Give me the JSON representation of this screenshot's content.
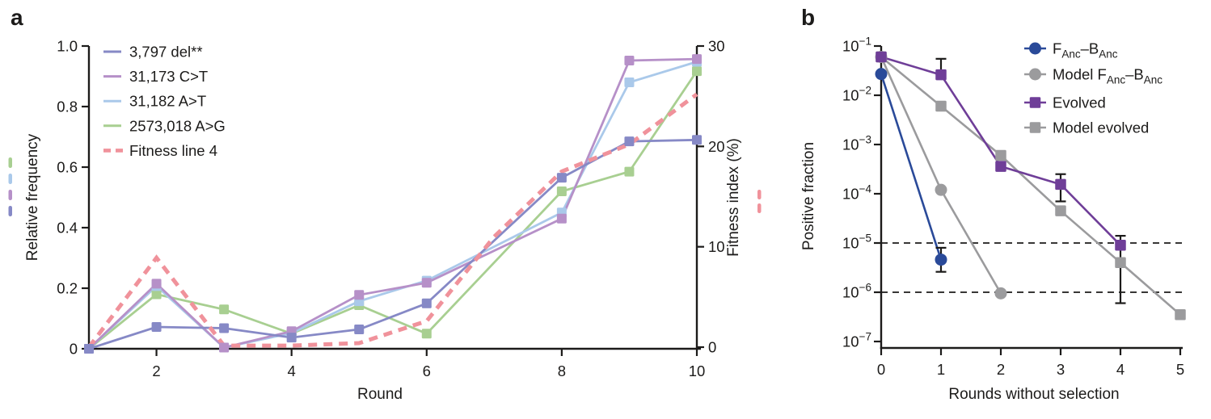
{
  "figure": {
    "background": "#ffffff",
    "text_color": "#1c1b1a",
    "panels": [
      {
        "label": "a"
      },
      {
        "label": "b"
      }
    ]
  },
  "chart_data": [
    {
      "panel": "a",
      "type": "line",
      "title": "",
      "xlabel": "Round",
      "ylabel_left": "Relative frequency",
      "ylabel_right": "Fitness index (%)",
      "x": [
        1,
        2,
        3,
        4,
        5,
        6,
        7,
        8,
        9,
        10
      ],
      "xlim": [
        1,
        10
      ],
      "x_ticks": [
        {
          "v": 2,
          "label": "2"
        },
        {
          "v": 4,
          "label": "4"
        },
        {
          "v": 6,
          "label": "6"
        },
        {
          "v": 8,
          "label": "8"
        },
        {
          "v": 10,
          "label": "10"
        }
      ],
      "ylim_left": [
        0,
        1.0
      ],
      "y_ticks_left": [
        {
          "v": 0,
          "label": "0"
        },
        {
          "v": 0.2,
          "label": "0.2"
        },
        {
          "v": 0.4,
          "label": "0.4"
        },
        {
          "v": 0.6,
          "label": "0.6"
        },
        {
          "v": 0.8,
          "label": "0.8"
        },
        {
          "v": 1.0,
          "label": "1.0"
        }
      ],
      "ylim_right": [
        0,
        30
      ],
      "y_ticks_right": [
        {
          "v": 0,
          "label": "0"
        },
        {
          "v": 10,
          "label": "10"
        },
        {
          "v": 20,
          "label": "20"
        },
        {
          "v": 30,
          "label": "30"
        }
      ],
      "grid": false,
      "legend_position": "top-left-inside",
      "series": [
        {
          "name": "3,797 del**",
          "slug": "3797-del",
          "color": "#8689c6",
          "axis": "left",
          "marker": "square",
          "dashed": false,
          "values": [
            0,
            0.072,
            0.068,
            0.037,
            0.064,
            0.15,
            null,
            0.565,
            0.685,
            0.69
          ]
        },
        {
          "name": "31,173 C>T",
          "slug": "31173-c-t",
          "color": "#b690c8",
          "axis": "left",
          "marker": "square",
          "dashed": false,
          "values": [
            0,
            0.215,
            0.004,
            0.058,
            0.178,
            0.218,
            null,
            0.43,
            0.952,
            0.957
          ]
        },
        {
          "name": "31,182 A>T",
          "slug": "31182-a-t",
          "color": "#aac9ea",
          "axis": "left",
          "marker": "square",
          "dashed": false,
          "values": [
            0,
            0.207,
            0.004,
            0.052,
            0.157,
            0.225,
            null,
            0.45,
            0.88,
            0.948
          ]
        },
        {
          "name": "2573,018 A>G",
          "slug": "2573018-a-g",
          "color": "#a8cf91",
          "axis": "left",
          "marker": "square",
          "dashed": false,
          "values": [
            0,
            0.18,
            0.13,
            0.05,
            0.144,
            0.05,
            null,
            0.52,
            0.585,
            0.917
          ]
        },
        {
          "name": "Fitness line 4",
          "slug": "fitness-line-4",
          "color": "#f0929b",
          "axis": "right",
          "marker": "none",
          "dashed": true,
          "values": [
            0,
            8.9,
            0.15,
            0.15,
            0.4,
            2.6,
            11,
            17.5,
            20.2,
            25.2
          ]
        }
      ],
      "axis_key_dashes": {
        "left_colors": [
          "#a8cf91",
          "#aac9ea",
          "#b690c8",
          "#8689c6"
        ],
        "right_colors": [
          "#f0929b",
          "#f0929b"
        ]
      }
    },
    {
      "panel": "b",
      "type": "line",
      "title": "",
      "xlabel": "Rounds without selection",
      "ylabel": "Positive fraction",
      "xlim": [
        0,
        5
      ],
      "x_ticks": [
        {
          "v": 0,
          "label": "0"
        },
        {
          "v": 1,
          "label": "1"
        },
        {
          "v": 2,
          "label": "2"
        },
        {
          "v": 3,
          "label": "3"
        },
        {
          "v": 4,
          "label": "4"
        },
        {
          "v": 5,
          "label": "5"
        }
      ],
      "y_scale": "log",
      "ylim": [
        1e-07,
        0.1
      ],
      "y_ticks": [
        {
          "v": 0.1,
          "base": "10",
          "exp": "−1"
        },
        {
          "v": 0.01,
          "base": "10",
          "exp": "−2"
        },
        {
          "v": 0.001,
          "base": "10",
          "exp": "−3"
        },
        {
          "v": 0.0001,
          "base": "10",
          "exp": "−4"
        },
        {
          "v": 1e-05,
          "base": "10",
          "exp": "−5"
        },
        {
          "v": 1e-06,
          "base": "10",
          "exp": "−6"
        },
        {
          "v": 1e-07,
          "base": "10",
          "exp": "−7"
        }
      ],
      "hlines": [
        {
          "v": 1e-05,
          "style": "dashed"
        },
        {
          "v": 1e-06,
          "style": "dashed"
        }
      ],
      "grid": false,
      "legend_position": "top-right-outside-plot",
      "series": [
        {
          "name": "FAnc–BAnc",
          "name_parts": [
            {
              "t": "F"
            },
            {
              "t": "Anc",
              "sub": true
            },
            {
              "t": "–B"
            },
            {
              "t": "Anc",
              "sub": true
            }
          ],
          "slug": "fanc-banc",
          "color": "#2a4a99",
          "marker": "circle",
          "points": [
            {
              "x": 0,
              "y": 0.027
            },
            {
              "x": 1,
              "y": 4.6e-06,
              "lo": 2.6e-06,
              "hi": 8e-06
            }
          ]
        },
        {
          "name": "Model FAnc–BAnc",
          "name_parts": [
            {
              "t": "Model F"
            },
            {
              "t": "Anc",
              "sub": true
            },
            {
              "t": "–B"
            },
            {
              "t": "Anc",
              "sub": true
            }
          ],
          "slug": "model-fanc-banc",
          "color": "#9b9b9d",
          "marker": "circle",
          "points": [
            {
              "x": 0,
              "y": 0.06
            },
            {
              "x": 1,
              "y": 0.00012
            },
            {
              "x": 2,
              "y": 9.5e-07
            }
          ]
        },
        {
          "name": "Evolved",
          "name_parts": [
            {
              "t": "Evolved"
            }
          ],
          "slug": "evolved",
          "color": "#6f3e98",
          "marker": "square",
          "points": [
            {
              "x": 0,
              "y": 0.06
            },
            {
              "x": 1,
              "y": 0.026,
              "hi": 0.055
            },
            {
              "x": 2,
              "y": 0.00036
            },
            {
              "x": 3,
              "y": 0.000155,
              "lo": 7e-05,
              "hi": 0.00025
            },
            {
              "x": 4,
              "y": 9e-06,
              "lo": 6e-07,
              "hi": 1.4e-05
            }
          ]
        },
        {
          "name": "Model evolved",
          "name_parts": [
            {
              "t": "Model evolved"
            }
          ],
          "slug": "model-evolved",
          "color": "#9b9b9d",
          "marker": "square",
          "points": [
            {
              "x": 0,
              "y": 0.06
            },
            {
              "x": 1,
              "y": 0.006
            },
            {
              "x": 2,
              "y": 0.0006
            },
            {
              "x": 3,
              "y": 4.5e-05
            },
            {
              "x": 4,
              "y": 4e-06
            },
            {
              "x": 5,
              "y": 3.5e-07
            }
          ]
        }
      ]
    }
  ]
}
